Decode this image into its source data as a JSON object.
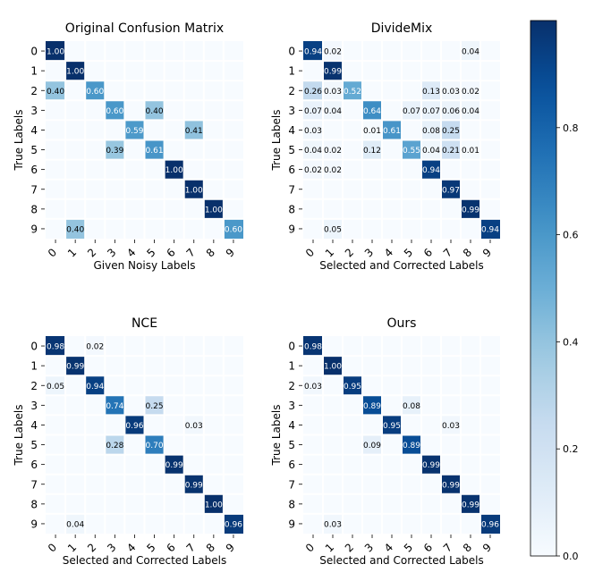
{
  "chart_data": [
    {
      "type": "heatmap",
      "title": "Original Confusion Matrix",
      "xlabel": "Given Noisy Labels",
      "ylabel": "True Labels",
      "x_ticks": [
        "0",
        "1",
        "2",
        "3",
        "4",
        "5",
        "6",
        "7",
        "8",
        "9"
      ],
      "y_ticks": [
        "0",
        "1",
        "2",
        "3",
        "4",
        "5",
        "6",
        "7",
        "8",
        "9"
      ],
      "cells": [
        [
          0,
          0,
          1.0
        ],
        [
          1,
          1,
          1.0
        ],
        [
          2,
          0,
          0.4
        ],
        [
          2,
          2,
          0.6
        ],
        [
          3,
          3,
          0.6
        ],
        [
          3,
          5,
          0.4
        ],
        [
          4,
          4,
          0.59
        ],
        [
          4,
          7,
          0.41
        ],
        [
          5,
          3,
          0.39
        ],
        [
          5,
          5,
          0.61
        ],
        [
          6,
          6,
          1.0
        ],
        [
          7,
          7,
          1.0
        ],
        [
          8,
          8,
          1.0
        ],
        [
          9,
          1,
          0.4
        ],
        [
          9,
          9,
          0.6
        ]
      ],
      "labels": {
        "0,0": "1.00",
        "1,1": "1.00",
        "2,0": "0.40",
        "2,2": "0.60",
        "3,3": "0.60",
        "3,5": "0.40",
        "4,4": "0.59",
        "4,7": "0.41",
        "5,3": "0.39",
        "5,5": "0.61",
        "6,6": "1.00",
        "7,7": "1.00",
        "8,8": "1.00",
        "9,1": "0.40",
        "9,9": "0.60"
      }
    },
    {
      "type": "heatmap",
      "title": "DivideMix",
      "xlabel": "Selected and Corrected Labels",
      "ylabel": "True Labels",
      "x_ticks": [
        "0",
        "1",
        "2",
        "3",
        "4",
        "5",
        "6",
        "7",
        "8",
        "9"
      ],
      "y_ticks": [
        "0",
        "1",
        "2",
        "3",
        "4",
        "5",
        "6",
        "7",
        "8",
        "9"
      ],
      "cells": [
        [
          0,
          0,
          0.94
        ],
        [
          0,
          1,
          0.02
        ],
        [
          0,
          8,
          0.04
        ],
        [
          1,
          1,
          0.99
        ],
        [
          2,
          0,
          0.26
        ],
        [
          2,
          1,
          0.03
        ],
        [
          2,
          2,
          0.52
        ],
        [
          2,
          6,
          0.13
        ],
        [
          2,
          7,
          0.03
        ],
        [
          2,
          8,
          0.02
        ],
        [
          3,
          0,
          0.07
        ],
        [
          3,
          1,
          0.04
        ],
        [
          3,
          3,
          0.64
        ],
        [
          3,
          5,
          0.07
        ],
        [
          3,
          6,
          0.07
        ],
        [
          3,
          7,
          0.06
        ],
        [
          3,
          8,
          0.04
        ],
        [
          4,
          0,
          0.03
        ],
        [
          4,
          3,
          0.01
        ],
        [
          4,
          4,
          0.61
        ],
        [
          4,
          6,
          0.08
        ],
        [
          4,
          7,
          0.25
        ],
        [
          5,
          0,
          0.04
        ],
        [
          5,
          1,
          0.02
        ],
        [
          5,
          3,
          0.12
        ],
        [
          5,
          5,
          0.55
        ],
        [
          5,
          6,
          0.04
        ],
        [
          5,
          7,
          0.21
        ],
        [
          5,
          8,
          0.01
        ],
        [
          6,
          0,
          0.02
        ],
        [
          6,
          1,
          0.02
        ],
        [
          6,
          6,
          0.94
        ],
        [
          7,
          7,
          0.97
        ],
        [
          8,
          8,
          0.99
        ],
        [
          9,
          1,
          0.05
        ],
        [
          9,
          9,
          0.94
        ]
      ],
      "labels": {}
    },
    {
      "type": "heatmap",
      "title": "NCE",
      "xlabel": "Selected and Corrected Labels",
      "ylabel": "True Labels",
      "x_ticks": [
        "0",
        "1",
        "2",
        "3",
        "4",
        "5",
        "6",
        "7",
        "8",
        "9"
      ],
      "y_ticks": [
        "0",
        "1",
        "2",
        "3",
        "4",
        "5",
        "6",
        "7",
        "8",
        "9"
      ],
      "cells": [
        [
          0,
          0,
          0.98
        ],
        [
          0,
          2,
          0.02
        ],
        [
          1,
          1,
          0.99
        ],
        [
          2,
          0,
          0.05
        ],
        [
          2,
          2,
          0.94
        ],
        [
          3,
          3,
          0.74
        ],
        [
          3,
          5,
          0.25
        ],
        [
          4,
          4,
          0.96
        ],
        [
          4,
          7,
          0.03
        ],
        [
          5,
          3,
          0.28
        ],
        [
          5,
          5,
          0.7
        ],
        [
          6,
          6,
          0.99
        ],
        [
          7,
          7,
          0.99
        ],
        [
          8,
          8,
          1.0
        ],
        [
          9,
          1,
          0.04
        ],
        [
          9,
          9,
          0.96
        ]
      ],
      "labels": {
        "8,8": "1.00"
      }
    },
    {
      "type": "heatmap",
      "title": "Ours",
      "xlabel": "Selected and Corrected Labels",
      "ylabel": "True Labels",
      "x_ticks": [
        "0",
        "1",
        "2",
        "3",
        "4",
        "5",
        "6",
        "7",
        "8",
        "9"
      ],
      "y_ticks": [
        "0",
        "1",
        "2",
        "3",
        "4",
        "5",
        "6",
        "7",
        "8",
        "9"
      ],
      "cells": [
        [
          0,
          0,
          0.98
        ],
        [
          1,
          1,
          1.0
        ],
        [
          2,
          0,
          0.03
        ],
        [
          2,
          2,
          0.95
        ],
        [
          3,
          3,
          0.89
        ],
        [
          3,
          5,
          0.08
        ],
        [
          4,
          4,
          0.95
        ],
        [
          4,
          7,
          0.03
        ],
        [
          5,
          3,
          0.09
        ],
        [
          5,
          5,
          0.89
        ],
        [
          6,
          6,
          0.99
        ],
        [
          7,
          7,
          0.99
        ],
        [
          8,
          8,
          0.99
        ],
        [
          9,
          1,
          0.03
        ],
        [
          9,
          9,
          0.96
        ]
      ],
      "labels": {
        "1,1": "1.00"
      }
    }
  ],
  "colorbar": {
    "colormap": "Blues",
    "range": [
      0.0,
      1.0
    ],
    "ticks": [
      "0.0",
      "0.2",
      "0.4",
      "0.6",
      "0.8"
    ]
  }
}
